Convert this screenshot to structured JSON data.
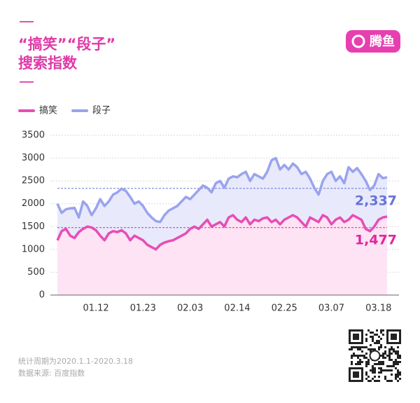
{
  "chart_data": {
    "type": "line",
    "title": [
      "“搞笑”“段子”",
      "搜索指数"
    ],
    "logo": "腾鱼",
    "notes": [
      "统计周期为2020.1.1-2020.3.18",
      "数据来源: 百度指数"
    ],
    "categories": [
      null,
      null,
      null,
      null,
      null,
      null,
      null,
      null,
      null,
      "01.12",
      null,
      null,
      null,
      null,
      null,
      null,
      null,
      null,
      null,
      null,
      "01.23",
      null,
      null,
      null,
      null,
      null,
      null,
      null,
      null,
      null,
      null,
      "02.03",
      null,
      null,
      null,
      null,
      null,
      null,
      null,
      null,
      null,
      null,
      "02.14",
      null,
      null,
      null,
      null,
      null,
      null,
      null,
      null,
      null,
      null,
      "02.25",
      null,
      null,
      null,
      null,
      null,
      null,
      null,
      null,
      null,
      null,
      "03.07",
      null,
      null,
      null,
      null,
      null,
      null,
      null,
      null,
      null,
      null,
      "03.18",
      null,
      null
    ],
    "series": [
      {
        "name": "搞笑",
        "color": "#e84cb5",
        "fill": "#fde3f3",
        "values": [
          1200,
          1400,
          1450,
          1300,
          1250,
          1380,
          1450,
          1500,
          1480,
          1420,
          1300,
          1200,
          1350,
          1400,
          1380,
          1420,
          1350,
          1200,
          1300,
          1250,
          1200,
          1100,
          1050,
          1000,
          1100,
          1150,
          1180,
          1200,
          1250,
          1300,
          1350,
          1450,
          1500,
          1450,
          1550,
          1650,
          1500,
          1550,
          1600,
          1500,
          1700,
          1750,
          1650,
          1600,
          1700,
          1550,
          1650,
          1620,
          1680,
          1700,
          1600,
          1650,
          1550,
          1650,
          1700,
          1750,
          1700,
          1600,
          1500,
          1700,
          1650,
          1600,
          1750,
          1700,
          1550,
          1650,
          1700,
          1600,
          1650,
          1750,
          1700,
          1650,
          1450,
          1400,
          1500,
          1650,
          1700,
          1720
        ]
      },
      {
        "name": "段子",
        "color": "#9aa3ee",
        "fill": "#e8eafc",
        "values": [
          2000,
          1800,
          1880,
          1900,
          1910,
          1700,
          2050,
          1950,
          1750,
          1900,
          2100,
          1950,
          2050,
          2200,
          2250,
          2330,
          2280,
          2150,
          2000,
          2050,
          1950,
          1800,
          1700,
          1620,
          1600,
          1750,
          1850,
          1900,
          1950,
          2050,
          2150,
          2100,
          2200,
          2300,
          2400,
          2350,
          2250,
          2450,
          2500,
          2350,
          2550,
          2600,
          2580,
          2650,
          2700,
          2500,
          2650,
          2600,
          2550,
          2700,
          2950,
          3000,
          2750,
          2850,
          2750,
          2880,
          2800,
          2650,
          2700,
          2550,
          2350,
          2200,
          2500,
          2650,
          2700,
          2500,
          2600,
          2450,
          2800,
          2700,
          2780,
          2650,
          2500,
          2300,
          2400,
          2650,
          2560,
          2580
        ]
      }
    ],
    "reference_lines": [
      {
        "value": 2337,
        "label": "2,337",
        "color": "#6673d8"
      },
      {
        "value": 1477,
        "label": "1,477",
        "color": "#e0279f"
      }
    ],
    "ylim": [
      0,
      3500
    ],
    "yticks": [
      0,
      500,
      1000,
      1500,
      2000,
      2500,
      3000,
      3500
    ],
    "grid": true
  }
}
